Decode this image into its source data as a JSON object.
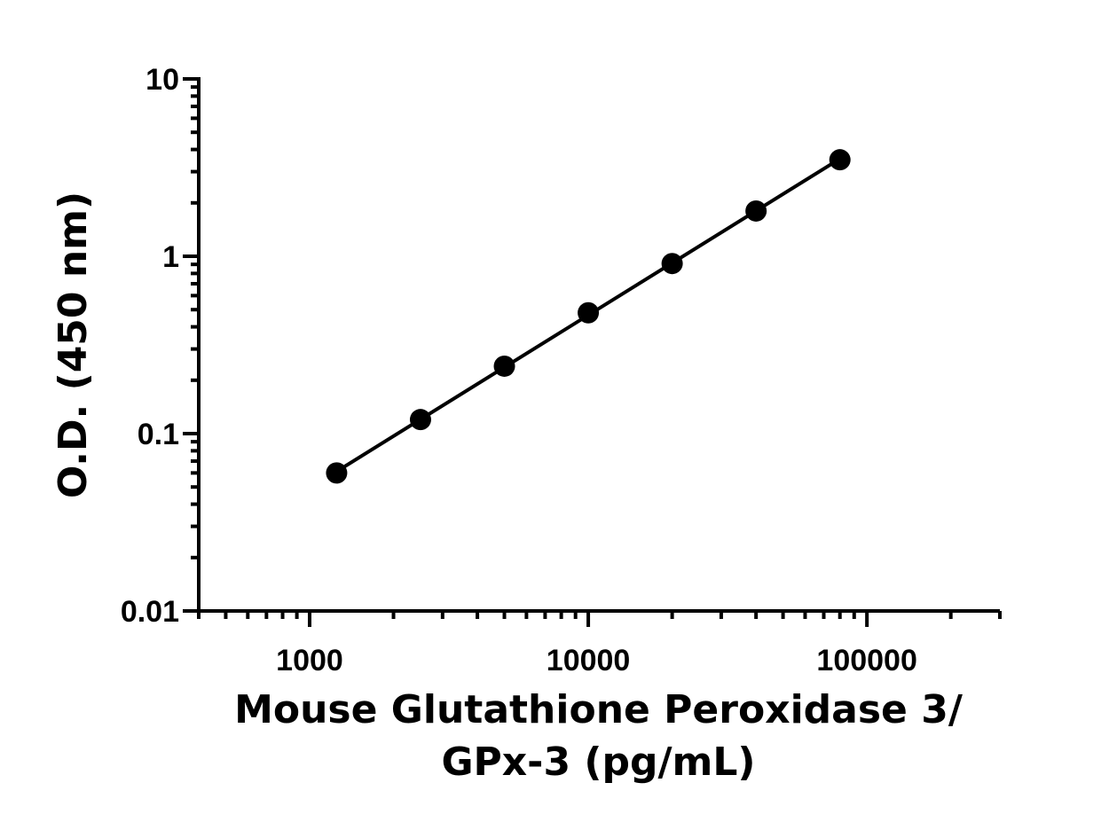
{
  "chart_data": {
    "type": "scatter",
    "title": "",
    "xlabel_lines": [
      "Mouse Glutathione Peroxidase 3/",
      "GPx-3 (pg/mL)"
    ],
    "ylabel": "O.D. (450 nm)",
    "xscale": "log",
    "yscale": "log",
    "xlim": [
      400,
      300000
    ],
    "ylim": [
      0.01,
      10
    ],
    "x_tick_values": [
      1000,
      10000,
      100000
    ],
    "x_tick_labels": [
      "1000",
      "10000",
      "100000"
    ],
    "y_tick_values": [
      0.01,
      0.1,
      1,
      10
    ],
    "y_tick_labels": [
      "0.01",
      "0.1",
      "1",
      "10"
    ],
    "grid": false,
    "legend": "none",
    "series": [
      {
        "x": [
          1250,
          2500,
          5000,
          10000,
          20000,
          40000,
          80000
        ],
        "y": [
          0.06,
          0.12,
          0.24,
          0.48,
          0.91,
          1.8,
          3.5
        ],
        "marker": "circle",
        "color": "#000000",
        "line": "fit"
      }
    ]
  }
}
